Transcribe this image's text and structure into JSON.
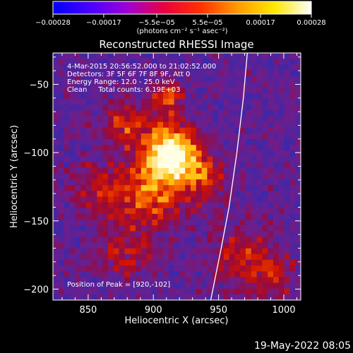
{
  "chart_data": {
    "type": "heatmap",
    "title": "Reconstructed RHESSI Image",
    "xlabel": "Heliocentric X (arcsec)",
    "ylabel": "Heliocentric Y (arcsec)",
    "xlim": [
      823,
      1013
    ],
    "ylim": [
      -208,
      -27
    ],
    "x_ticks": [
      850,
      900,
      950,
      1000
    ],
    "y_ticks": [
      -50,
      -100,
      -150,
      -200
    ],
    "x_tick_labels": [
      "850",
      "900",
      "950",
      "1000"
    ],
    "y_tick_labels": [
      "−50",
      "−100",
      "−150",
      "−200"
    ],
    "colorbar": {
      "range": [
        -0.00028,
        0.00028
      ],
      "ticks": [
        -0.00028,
        -0.00017,
        -5.5e-05,
        5.5e-05,
        0.00017,
        0.00028
      ],
      "tick_labels": [
        "−0.00028",
        "−0.00017",
        "−5.5e−05",
        "5.5e−05",
        "0.00017",
        "0.00028"
      ],
      "units_label": "(photons cm⁻² s⁻¹ asec⁻²)",
      "colors": [
        "#0000ff",
        "#4a00ff",
        "#9d00d8",
        "#e80040",
        "#ff3000",
        "#ff9a00",
        "#ffe800",
        "#ffffff"
      ]
    },
    "annotations": [
      "4-Mar-2015 20:56:52.000 to 21:02:52.000",
      "Detectors: 3F 5F 6F 7F 8F 9F, Att 0",
      "Energy Range: 12.0 - 25.0 keV",
      "Clean     Total counts: 6.19E+03",
      "Position of Peak = [920,-102]"
    ],
    "peak": {
      "x": 920,
      "y": -102
    },
    "limb": [
      [
        944,
        -208
      ],
      [
        952,
        -170
      ],
      [
        958,
        -140
      ],
      [
        964,
        -100
      ],
      [
        969,
        -60
      ],
      [
        972,
        -27
      ]
    ],
    "sources": [
      {
        "x": 915,
        "y": -102,
        "sigma": 14,
        "amp": 1.0
      },
      {
        "x": 912,
        "y": -60,
        "sigma": 8,
        "amp": 0.55
      },
      {
        "x": 900,
        "y": -132,
        "sigma": 17,
        "amp": 0.5
      },
      {
        "x": 880,
        "y": -80,
        "sigma": 13,
        "amp": 0.4
      },
      {
        "x": 940,
        "y": -120,
        "sigma": 13,
        "amp": 0.4
      },
      {
        "x": 860,
        "y": -130,
        "sigma": 15,
        "amp": 0.32
      },
      {
        "x": 880,
        "y": -175,
        "sigma": 15,
        "amp": 0.3
      },
      {
        "x": 970,
        "y": -180,
        "sigma": 17,
        "amp": 0.32
      },
      {
        "x": 995,
        "y": -195,
        "sigma": 12,
        "amp": 0.28
      }
    ]
  },
  "footer": {
    "date": "19-May-2022 08:05"
  }
}
